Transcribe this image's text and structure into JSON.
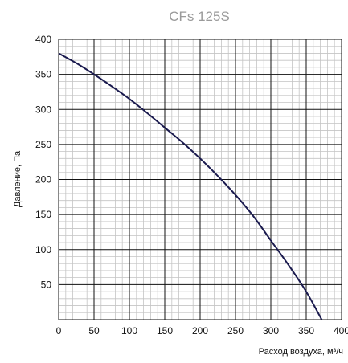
{
  "chart_data": {
    "type": "line",
    "title": "CFs 125S",
    "xlabel": "Расход воздуха, м³/ч",
    "ylabel": "Давление, Па",
    "xlim": [
      0,
      400
    ],
    "ylim": [
      0,
      400
    ],
    "x_ticks": [
      "0",
      "50",
      "100",
      "150",
      "200",
      "250",
      "300",
      "350",
      "400"
    ],
    "y_ticks": [
      "50",
      "100",
      "150",
      "200",
      "250",
      "300",
      "350",
      "400"
    ],
    "grid": true,
    "series": [
      {
        "x": [
          0,
          25,
          50,
          75,
          100,
          125,
          150,
          175,
          200,
          225,
          250,
          275,
          300,
          325,
          350,
          372
        ],
        "y": [
          380,
          366,
          350,
          333,
          315,
          295,
          274,
          253,
          230,
          205,
          178,
          148,
          113,
          78,
          40,
          0
        ]
      }
    ],
    "colors": {
      "curve": "#1a1a4e",
      "major_grid": "#111111",
      "minor_grid": "#c4c4c4"
    }
  }
}
